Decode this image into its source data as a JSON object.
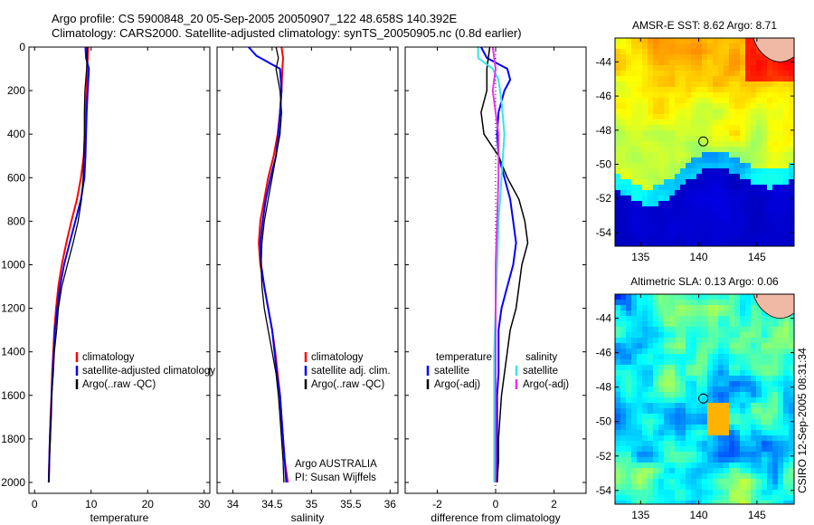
{
  "header": {
    "line1": "Argo profile: CS 5900848_20 05-Sep-2005 20050907_122 48.658S 140.392E",
    "line2": "Climatology: CARS2000. Satellite-adjusted climatology: synTS_20050905.nc (0.8d earlier)"
  },
  "credit": "CSIRO 12-Sep-2005 08:31:34",
  "argo_label": "Argo AUSTRALIA",
  "pi_label": "PI: Susan Wijffels",
  "colors": {
    "climatology": "#ff0000",
    "satellite": "#0000ff",
    "argo": "#000000",
    "cyan": "#33e6e6",
    "magenta": "#e633e6"
  },
  "chart_data": [
    {
      "type": "line",
      "xlabel": "temperature",
      "xlim": [
        -1,
        31
      ],
      "ylim": [
        0,
        2050
      ],
      "y_reversed": true,
      "xticks": [
        0,
        10,
        20,
        30
      ],
      "yticks": [
        0,
        200,
        400,
        600,
        800,
        1000,
        1200,
        1400,
        1600,
        1800,
        2000
      ],
      "legend": {
        "placement": "center-right",
        "labels": [
          "climatology",
          "satellite-adjusted climatology",
          "Argo(..raw -QC)"
        ]
      },
      "series": [
        {
          "name": "climatology",
          "color": "climatology",
          "width": 2,
          "points": [
            [
              9.5,
              0
            ],
            [
              9.4,
              50
            ],
            [
              9.3,
              100
            ],
            [
              9.2,
              200
            ],
            [
              9.0,
              300
            ],
            [
              8.9,
              400
            ],
            [
              8.7,
              500
            ],
            [
              8.2,
              600
            ],
            [
              7.5,
              700
            ],
            [
              6.5,
              800
            ],
            [
              5.6,
              900
            ],
            [
              4.8,
              1000
            ],
            [
              4.2,
              1100
            ],
            [
              3.8,
              1200
            ],
            [
              3.5,
              1300
            ],
            [
              3.3,
              1400
            ],
            [
              3.1,
              1500
            ],
            [
              3.0,
              1600
            ],
            [
              2.8,
              1700
            ],
            [
              2.7,
              1800
            ],
            [
              2.6,
              1900
            ],
            [
              2.5,
              2000
            ]
          ]
        },
        {
          "name": "satellite-adjusted climatology",
          "color": "satellite",
          "width": 2,
          "points": [
            [
              9.0,
              0
            ],
            [
              9.1,
              50
            ],
            [
              9.6,
              100
            ],
            [
              9.4,
              200
            ],
            [
              9.2,
              300
            ],
            [
              9.1,
              400
            ],
            [
              9.0,
              500
            ],
            [
              8.8,
              600
            ],
            [
              8.2,
              700
            ],
            [
              7.2,
              800
            ],
            [
              6.2,
              900
            ],
            [
              5.2,
              1000
            ],
            [
              4.5,
              1100
            ],
            [
              4.0,
              1200
            ],
            [
              3.6,
              1300
            ],
            [
              3.4,
              1400
            ],
            [
              3.2,
              1500
            ],
            [
              3.0,
              1600
            ],
            [
              2.9,
              1700
            ],
            [
              2.7,
              1800
            ],
            [
              2.6,
              1900
            ],
            [
              2.5,
              2000
            ]
          ]
        },
        {
          "name": "Argo(..raw -QC)",
          "color": "argo",
          "width": 1.3,
          "points": [
            [
              9.3,
              0
            ],
            [
              9.2,
              100
            ],
            [
              8.9,
              200
            ],
            [
              8.8,
              300
            ],
            [
              8.8,
              400
            ],
            [
              8.7,
              500
            ],
            [
              8.6,
              600
            ],
            [
              8.3,
              700
            ],
            [
              7.7,
              800
            ],
            [
              6.8,
              900
            ],
            [
              5.8,
              1000
            ],
            [
              4.8,
              1100
            ],
            [
              4.2,
              1200
            ],
            [
              3.9,
              1300
            ],
            [
              3.5,
              1400
            ],
            [
              3.3,
              1500
            ],
            [
              3.0,
              1600
            ],
            [
              2.9,
              1700
            ],
            [
              2.8,
              1800
            ],
            [
              2.6,
              1900
            ],
            [
              2.5,
              2000
            ]
          ]
        }
      ]
    },
    {
      "type": "line",
      "xlabel": "salinity",
      "xlim": [
        33.8,
        36.1
      ],
      "ylim": [
        0,
        2050
      ],
      "y_reversed": true,
      "xticks": [
        34,
        34.5,
        35,
        35.5,
        36
      ],
      "yticks": [
        0,
        200,
        400,
        600,
        800,
        1000,
        1200,
        1400,
        1600,
        1800,
        2000
      ],
      "legend": {
        "placement": "center-right",
        "labels": [
          "climatology",
          "satellite adj. clim.",
          "Argo(..raw -QC)"
        ]
      },
      "series": [
        {
          "name": "climatology",
          "color": "climatology",
          "width": 2,
          "points": [
            [
              34.62,
              0
            ],
            [
              34.64,
              50
            ],
            [
              34.63,
              100
            ],
            [
              34.62,
              200
            ],
            [
              34.6,
              300
            ],
            [
              34.57,
              400
            ],
            [
              34.52,
              500
            ],
            [
              34.45,
              600
            ],
            [
              34.4,
              700
            ],
            [
              34.35,
              800
            ],
            [
              34.33,
              900
            ],
            [
              34.35,
              1000
            ],
            [
              34.4,
              1100
            ],
            [
              34.45,
              1200
            ],
            [
              34.5,
              1300
            ],
            [
              34.54,
              1400
            ],
            [
              34.57,
              1500
            ],
            [
              34.6,
              1600
            ],
            [
              34.62,
              1700
            ],
            [
              34.64,
              1800
            ],
            [
              34.66,
              1900
            ],
            [
              34.7,
              2000
            ]
          ]
        },
        {
          "name": "satellite adj. clim.",
          "color": "satellite",
          "width": 2,
          "points": [
            [
              34.2,
              0
            ],
            [
              34.3,
              40
            ],
            [
              34.4,
              60
            ],
            [
              34.5,
              80
            ],
            [
              34.6,
              100
            ],
            [
              34.62,
              200
            ],
            [
              34.6,
              300
            ],
            [
              34.58,
              400
            ],
            [
              34.55,
              500
            ],
            [
              34.48,
              600
            ],
            [
              34.42,
              700
            ],
            [
              34.38,
              800
            ],
            [
              34.35,
              900
            ],
            [
              34.36,
              1000
            ],
            [
              34.4,
              1100
            ],
            [
              34.45,
              1200
            ],
            [
              34.5,
              1300
            ],
            [
              34.53,
              1400
            ],
            [
              34.56,
              1500
            ],
            [
              34.6,
              1600
            ],
            [
              34.62,
              1700
            ],
            [
              34.64,
              1800
            ],
            [
              34.66,
              1900
            ],
            [
              34.68,
              2000
            ]
          ]
        },
        {
          "name": "Argo(..raw -QC)",
          "color": "argo",
          "width": 1.3,
          "points": [
            [
              34.55,
              0
            ],
            [
              34.58,
              50
            ],
            [
              34.55,
              100
            ],
            [
              34.6,
              200
            ],
            [
              34.62,
              300
            ],
            [
              34.6,
              400
            ],
            [
              34.55,
              500
            ],
            [
              34.5,
              600
            ],
            [
              34.45,
              700
            ],
            [
              34.4,
              800
            ],
            [
              34.37,
              900
            ],
            [
              34.36,
              1000
            ],
            [
              34.37,
              1100
            ],
            [
              34.4,
              1200
            ],
            [
              34.45,
              1300
            ],
            [
              34.5,
              1400
            ],
            [
              34.55,
              1500
            ],
            [
              34.58,
              1600
            ],
            [
              34.6,
              1700
            ],
            [
              34.62,
              1800
            ],
            [
              34.64,
              1900
            ],
            [
              34.65,
              2000
            ]
          ]
        }
      ]
    },
    {
      "type": "line",
      "xlabel": "difference from climatology",
      "xlim": [
        -3.1,
        3.1
      ],
      "ylim": [
        0,
        2050
      ],
      "y_reversed": true,
      "xticks": [
        -2,
        0,
        2
      ],
      "yticks": [
        0,
        200,
        400,
        600,
        800,
        1000,
        1200,
        1400,
        1600,
        1800,
        2000
      ],
      "zero_line": 0,
      "legend": {
        "placement": "center",
        "headings": [
          "temperature",
          "salinity"
        ],
        "labels": [
          "satellite",
          "Argo(-adj)",
          "satellite",
          "Argo(-adj)"
        ]
      },
      "series": [
        {
          "name": "temperature satellite",
          "color": "satellite",
          "width": 2,
          "points": [
            [
              -0.5,
              0
            ],
            [
              -0.3,
              50
            ],
            [
              0.4,
              100
            ],
            [
              0.5,
              150
            ],
            [
              0.3,
              200
            ],
            [
              0.1,
              300
            ],
            [
              0.05,
              400
            ],
            [
              0.1,
              500
            ],
            [
              0.3,
              600
            ],
            [
              0.5,
              700
            ],
            [
              0.6,
              800
            ],
            [
              0.7,
              900
            ],
            [
              0.6,
              1000
            ],
            [
              0.4,
              1100
            ],
            [
              0.2,
              1200
            ],
            [
              0.1,
              1300
            ],
            [
              0.1,
              1400
            ],
            [
              0.1,
              1500
            ],
            [
              0.05,
              1600
            ],
            [
              0.05,
              1700
            ],
            [
              0.05,
              1800
            ],
            [
              0.05,
              1900
            ],
            [
              0.05,
              2000
            ]
          ]
        },
        {
          "name": "temperature Argo(-adj)",
          "color": "argo",
          "width": 1.5,
          "points": [
            [
              -0.2,
              0
            ],
            [
              -0.3,
              100
            ],
            [
              -0.3,
              200
            ],
            [
              -0.5,
              300
            ],
            [
              -0.4,
              400
            ],
            [
              0.1,
              500
            ],
            [
              0.4,
              600
            ],
            [
              0.8,
              700
            ],
            [
              1.0,
              800
            ],
            [
              1.1,
              900
            ],
            [
              0.9,
              1000
            ],
            [
              0.8,
              1100
            ],
            [
              0.7,
              1200
            ],
            [
              0.5,
              1300
            ],
            [
              0.4,
              1400
            ],
            [
              0.3,
              1500
            ],
            [
              0.2,
              1600
            ],
            [
              0.15,
              1700
            ],
            [
              0.1,
              1800
            ],
            [
              0.1,
              1900
            ],
            [
              0.05,
              2000
            ]
          ]
        },
        {
          "name": "salinity satellite",
          "color": "cyan",
          "width": 2,
          "points": [
            [
              -0.6,
              0
            ],
            [
              -0.6,
              50
            ],
            [
              -0.1,
              100
            ],
            [
              0.1,
              150
            ],
            [
              0.2,
              250
            ],
            [
              0.3,
              400
            ],
            [
              0.2,
              600
            ],
            [
              0.1,
              800
            ],
            [
              0.05,
              1000
            ],
            [
              0.0,
              1200
            ],
            [
              -0.05,
              1400
            ],
            [
              -0.05,
              1600
            ],
            [
              -0.05,
              1800
            ],
            [
              -0.05,
              2000
            ]
          ]
        },
        {
          "name": "salinity Argo(-adj)",
          "color": "magenta",
          "width": 2,
          "points": [
            [
              -0.1,
              0
            ],
            [
              0.0,
              100
            ],
            [
              -0.1,
              200
            ],
            [
              0.0,
              300
            ],
            [
              0.1,
              400
            ],
            [
              0.1,
              600
            ],
            [
              0.05,
              800
            ],
            [
              0.0,
              1000
            ],
            [
              0.0,
              1200
            ],
            [
              0.0,
              1400
            ],
            [
              0.0,
              1600
            ],
            [
              0.0,
              1800
            ],
            [
              0.0,
              2000
            ]
          ]
        }
      ]
    },
    {
      "type": "heatmap",
      "title": "AMSR-E SST: 8.62 Argo: 8.71",
      "xlim": [
        132.8,
        148.2
      ],
      "ylim": [
        -54.8,
        -42.6
      ],
      "xticks": [
        135,
        140,
        145
      ],
      "yticks": [
        -44,
        -46,
        -48,
        -50,
        -52,
        -54
      ],
      "marker": {
        "lon": 140.392,
        "lat": -48.658
      }
    },
    {
      "type": "heatmap",
      "title": "Altimetric SLA: 0.13 Argo: 0.06",
      "xlim": [
        132.8,
        148.2
      ],
      "ylim": [
        -54.8,
        -42.6
      ],
      "xticks": [
        135,
        140,
        145
      ],
      "yticks": [
        -44,
        -46,
        -48,
        -50,
        -52,
        -54
      ],
      "marker": {
        "lon": 140.392,
        "lat": -48.658
      }
    }
  ]
}
